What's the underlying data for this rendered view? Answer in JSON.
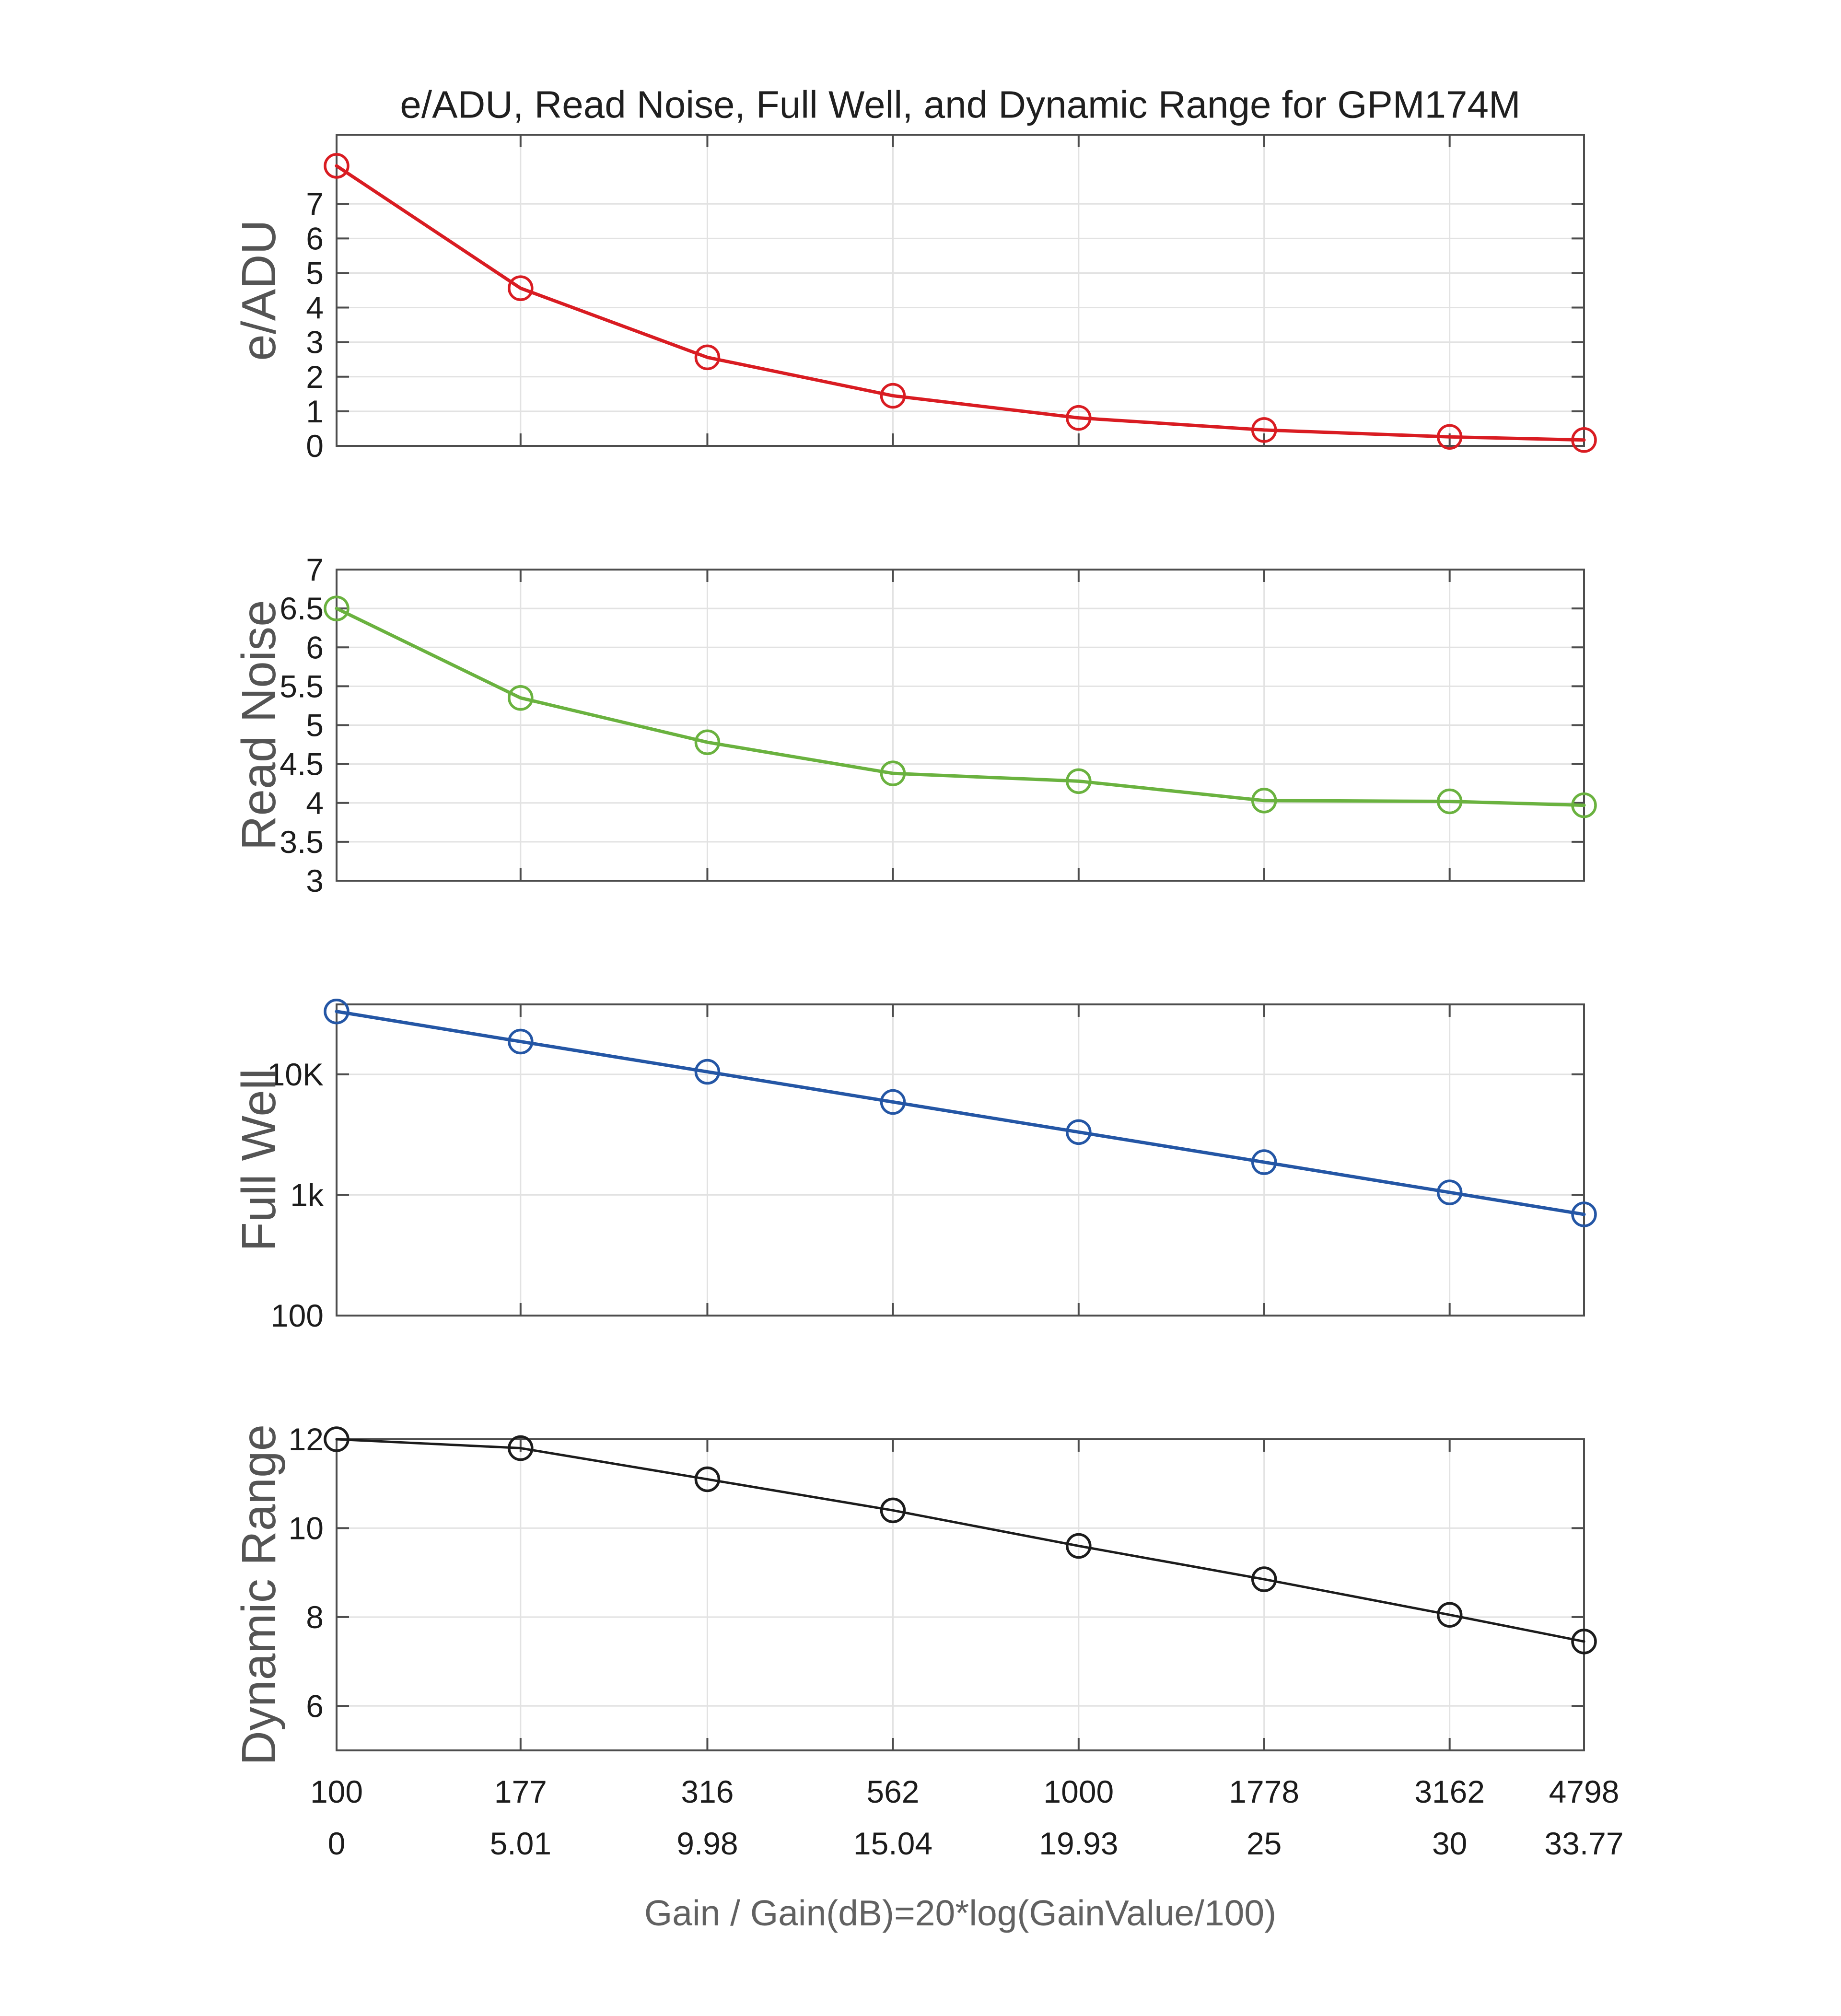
{
  "title": "e/ADU, Read Noise, Full Well, and Dynamic Range for GPM174M",
  "x_axis": {
    "title": "Gain / Gain(dB)=20*log(GainValue/100)",
    "scale": "log",
    "ticks": [
      100,
      177,
      316,
      562,
      1000,
      1778,
      3162,
      4798
    ],
    "gain_labels": [
      "100",
      "177",
      "316",
      "562",
      "1000",
      "1778",
      "3162",
      "4798"
    ],
    "gain_db_labels": [
      "0",
      "5.01",
      "9.98",
      "15.04",
      "19.93",
      "25",
      "30",
      "33.77"
    ]
  },
  "colors": {
    "e_adu": "#d91c22",
    "read_noise": "#6ab23f",
    "full_well": "#2456a5",
    "dynamic_range": "#1c1c1c",
    "axis": "#4d4d4d",
    "grid": "#e2e2e2",
    "tick_text": "#1c1c1c",
    "label_text": "#545454"
  },
  "chart_data": {
    "type": "line",
    "title": "e/ADU, Read Noise, Full Well, and Dynamic Range for GPM174M",
    "xlabel": "Gain / Gain(dB)=20*log(GainValue/100)",
    "x_scale": "log",
    "xlim": [
      100,
      4798
    ],
    "x": [
      100,
      177,
      316,
      562,
      1000,
      1778,
      3162,
      4798
    ],
    "x_tick_labels_gain": [
      "100",
      "177",
      "316",
      "562",
      "1000",
      "1778",
      "3162",
      "4798"
    ],
    "x_tick_labels_db": [
      "0",
      "5.01",
      "9.98",
      "15.04",
      "19.93",
      "25",
      "30",
      "33.77"
    ],
    "grid": true,
    "marker": "o",
    "legend": "none",
    "subplots": [
      {
        "name": "e/ADU",
        "ylabel": "e/ADU",
        "color": "#d91c22",
        "yscale": "linear",
        "ylim": [
          0,
          9
        ],
        "yticks": [
          0,
          1,
          2,
          3,
          4,
          5,
          6,
          7
        ],
        "ytick_labels": [
          "0",
          "1",
          "2",
          "3",
          "4",
          "5",
          "6",
          "7"
        ],
        "values": [
          8.1,
          4.56,
          2.56,
          1.45,
          0.81,
          0.46,
          0.26,
          0.17
        ],
        "line_width": 7
      },
      {
        "name": "Read Noise",
        "ylabel": "Read Noise",
        "color": "#6ab23f",
        "yscale": "linear",
        "ylim": [
          3,
          7
        ],
        "yticks": [
          3,
          3.5,
          4,
          4.5,
          5,
          5.5,
          6,
          6.5,
          7
        ],
        "ytick_labels": [
          "3",
          "3.5",
          "4",
          "4.5",
          "5",
          "5.5",
          "6",
          "6.5",
          "7"
        ],
        "values": [
          6.5,
          5.35,
          4.78,
          4.38,
          4.28,
          4.03,
          4.02,
          3.97
        ],
        "line_width": 7
      },
      {
        "name": "Full Well",
        "ylabel": "Full Well",
        "color": "#2456a5",
        "yscale": "log",
        "ylim": [
          100,
          38000
        ],
        "yticks": [
          100,
          1000,
          10000
        ],
        "ytick_labels": [
          "100",
          "1k",
          "10K"
        ],
        "values": [
          33200,
          18700,
          10500,
          5900,
          3320,
          1870,
          1050,
          690
        ],
        "line_width": 7
      },
      {
        "name": "Dynamic Range",
        "ylabel": "Dynamic Range",
        "color": "#1c1c1c",
        "yscale": "linear",
        "ylim": [
          5,
          12
        ],
        "yticks": [
          6,
          8,
          10,
          12
        ],
        "ytick_labels": [
          "6",
          "8",
          "10",
          "12"
        ],
        "values": [
          12.0,
          11.8,
          11.1,
          10.4,
          9.6,
          8.85,
          8.05,
          7.45
        ],
        "line_width": 5
      }
    ]
  }
}
